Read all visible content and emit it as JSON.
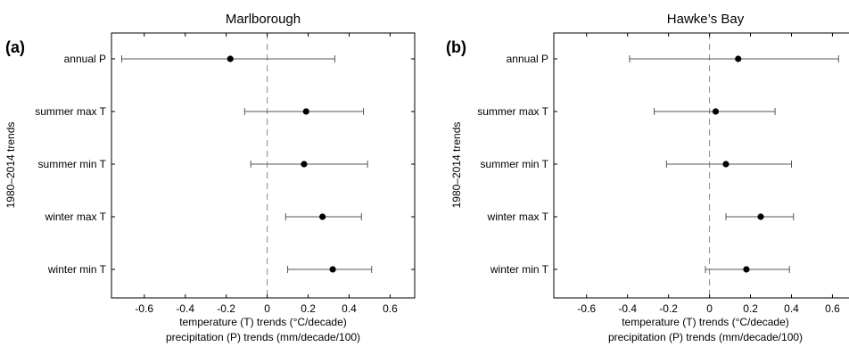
{
  "chart_data": [
    {
      "type": "scatter",
      "panel_label": "(a)",
      "title": "Marlborough",
      "ylabel": "1980–2014 trends",
      "xlabel": "temperature (T) trends (°C/decade)",
      "xlabel2": "precipitation (P) trends (mm/decade/100)",
      "xlim": [
        -0.76,
        0.72
      ],
      "xticks": [
        "-0.6",
        "-0.4",
        "-0.2",
        "0",
        "0.2",
        "0.4",
        "0.6"
      ],
      "categories": [
        "annual P",
        "summer max T",
        "summer min T",
        "winter max T",
        "winter min T"
      ],
      "values": [
        -0.18,
        0.19,
        0.18,
        0.27,
        0.32
      ],
      "err_low": [
        -0.71,
        -0.11,
        -0.08,
        0.09,
        0.1
      ],
      "err_high": [
        0.33,
        0.47,
        0.49,
        0.46,
        0.51
      ],
      "reference_line": 0
    },
    {
      "type": "scatter",
      "panel_label": "(b)",
      "title": "Hawke’s Bay",
      "ylabel": "1980–2014 trends",
      "xlabel": "temperature (T) trends (°C/decade)",
      "xlabel2": "precipitation (P) trends (mm/decade/100)",
      "xlim": [
        -0.76,
        0.72
      ],
      "xticks": [
        "-0.6",
        "-0.4",
        "-0.2",
        "0",
        "0.2",
        "0.4",
        "0.6"
      ],
      "categories": [
        "annual P",
        "summer max T",
        "summer min T",
        "winter max T",
        "winter min T"
      ],
      "values": [
        0.14,
        0.03,
        0.08,
        0.25,
        0.18
      ],
      "err_low": [
        -0.39,
        -0.27,
        -0.21,
        0.08,
        -0.02
      ],
      "err_high": [
        0.63,
        0.32,
        0.4,
        0.41,
        0.39
      ],
      "reference_line": 0
    }
  ]
}
